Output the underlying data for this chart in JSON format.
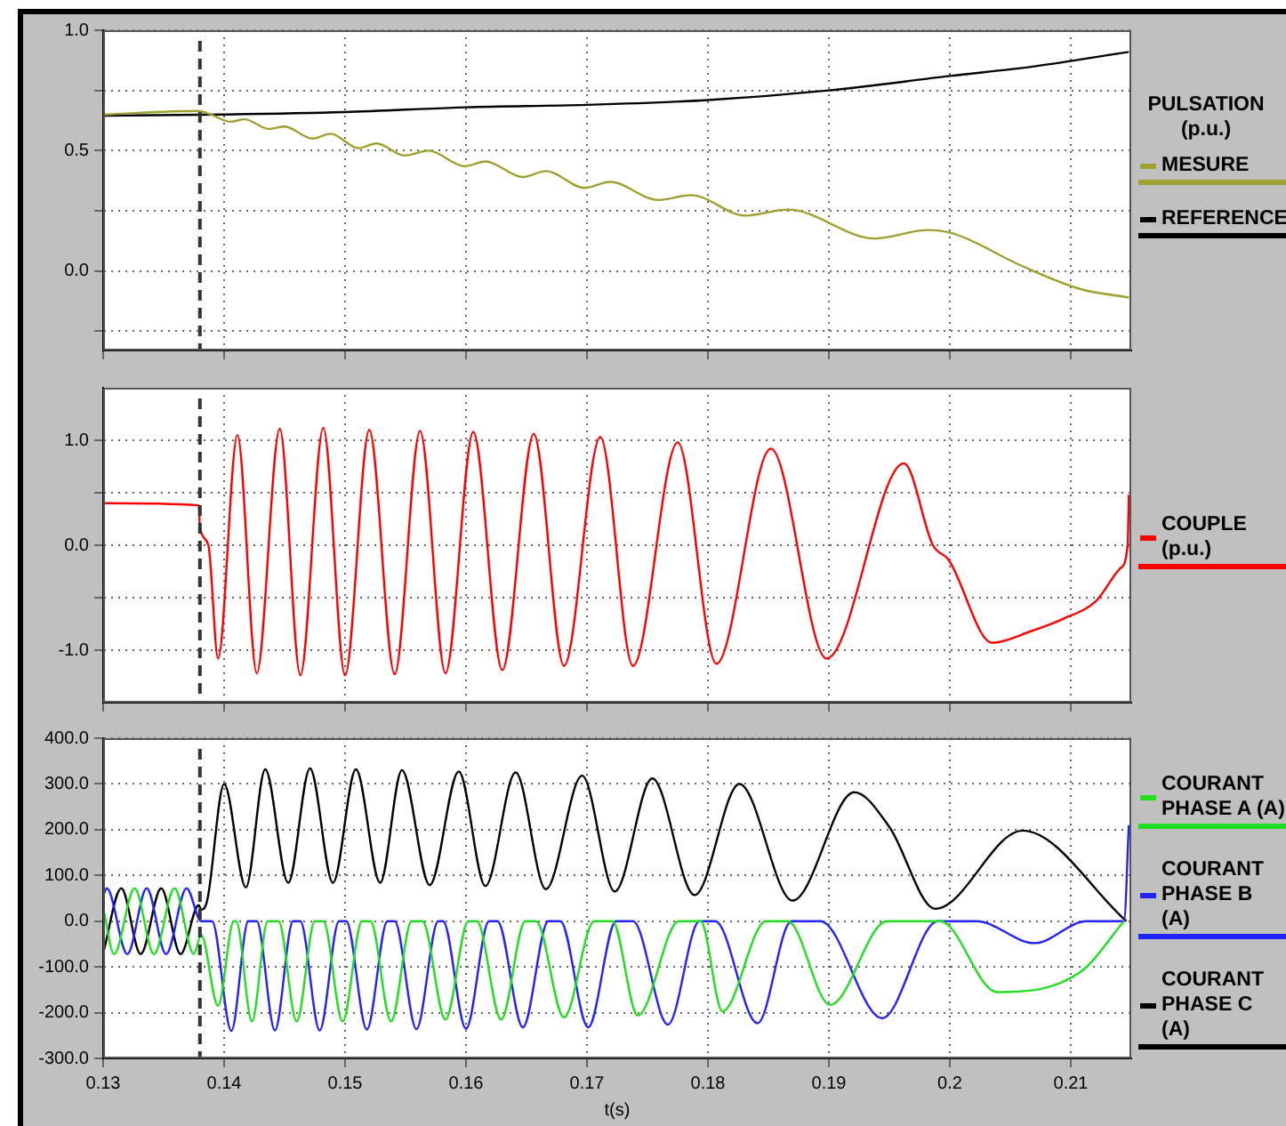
{
  "chart_data": [
    {
      "type": "line",
      "legend_title": "PULSATION (p.u.)",
      "legend": "right",
      "grid": true,
      "tick_labels": "y",
      "xlim": [
        0.13,
        0.215
      ],
      "xticks": [
        0.13,
        0.14,
        0.15,
        0.16,
        0.17,
        0.18,
        0.19,
        0.2,
        0.21
      ],
      "ylim": [
        -0.33,
        1
      ],
      "yticks": [
        {
          "value": -0.25,
          "label": null
        },
        {
          "value": 0,
          "label": "0.0"
        },
        {
          "value": 0.25,
          "label": null
        },
        {
          "value": 0.5,
          "label": "0.5"
        },
        {
          "value": 0.75,
          "label": null
        },
        {
          "value": 1,
          "label": "1.0"
        }
      ],
      "ref_lines": [
        {
          "axis": "x",
          "value": 0.138,
          "color": "#333333",
          "line_style": "dashed"
        }
      ],
      "series": [
        {
          "name": "MESURE",
          "color": "#a0a030",
          "x": [
            0.13,
            0.1379,
            0.1389,
            0.1405,
            0.1417,
            0.1437,
            0.145,
            0.1473,
            0.1488,
            0.1511,
            0.1526,
            0.1549,
            0.1569,
            0.1599,
            0.1616,
            0.1647,
            0.1666,
            0.1698,
            0.1719,
            0.1759,
            0.1786,
            0.1831,
            0.1866,
            0.1938,
            0.1982,
            0.2003,
            0.206,
            0.2108,
            0.2148
          ],
          "values": [
            0.65,
            0.665,
            0.65,
            0.62,
            0.63,
            0.59,
            0.6,
            0.55,
            0.57,
            0.51,
            0.53,
            0.48,
            0.5,
            0.435,
            0.455,
            0.39,
            0.415,
            0.345,
            0.37,
            0.295,
            0.315,
            0.23,
            0.255,
            0.135,
            0.17,
            0.155,
            0.02,
            -0.075,
            -0.11
          ]
        },
        {
          "name": "REFERENCE",
          "color": "#000000",
          "x": [
            0.13,
            0.14,
            0.15,
            0.16,
            0.17,
            0.18,
            0.19,
            0.2,
            0.207,
            0.2148
          ],
          "values": [
            0.645,
            0.65,
            0.66,
            0.68,
            0.69,
            0.71,
            0.75,
            0.81,
            0.85,
            0.91
          ]
        }
      ]
    },
    {
      "type": "line",
      "legend": "right",
      "grid": true,
      "tick_labels": "y",
      "xlim": [
        0.13,
        0.215
      ],
      "xticks": [
        0.13,
        0.14,
        0.15,
        0.16,
        0.17,
        0.18,
        0.19,
        0.2,
        0.21
      ],
      "ylim": [
        -1.5,
        1.5
      ],
      "yticks": [
        {
          "value": -1,
          "label": "-1.0"
        },
        {
          "value": -0.5,
          "label": null
        },
        {
          "value": 0,
          "label": "0.0"
        },
        {
          "value": 0.5,
          "label": null
        },
        {
          "value": 1,
          "label": "1.0"
        }
      ],
      "ref_lines": [
        {
          "axis": "x",
          "value": 0.138,
          "color": "#333333",
          "line_style": "dashed"
        }
      ],
      "series": [
        {
          "name": "COUPLE (p.u.)",
          "color": "#ff0000",
          "x": [
            0.13,
            0.1379,
            0.138,
            0.1387,
            0.1395,
            0.1411,
            0.1427,
            0.1446,
            0.1463,
            0.1482,
            0.15,
            0.152,
            0.1541,
            0.1562,
            0.1583,
            0.1606,
            0.163,
            0.1656,
            0.1681,
            0.1711,
            0.1738,
            0.1775,
            0.1807,
            0.1852,
            0.1898,
            0.1962,
            0.1986,
            0.1999,
            0.2035,
            0.2067,
            0.2094,
            0.2121,
            0.2141,
            0.2147,
            0.2148
          ],
          "values": [
            0.4,
            0.38,
            0.17,
            0,
            -1.08,
            1.05,
            -1.22,
            1.11,
            -1.24,
            1.12,
            -1.24,
            1.1,
            -1.23,
            1.09,
            -1.22,
            1.08,
            -1.19,
            1.06,
            -1.15,
            1.03,
            -1.15,
            0.98,
            -1.13,
            0.92,
            -1.08,
            0.78,
            0,
            -0.14,
            -0.93,
            -0.82,
            -0.7,
            -0.53,
            -0.22,
            0,
            0.48
          ]
        }
      ]
    },
    {
      "type": "line",
      "legend": "right",
      "grid": true,
      "xlabel": "t(s)",
      "xlim": [
        0.13,
        0.215
      ],
      "xticks": [
        0.13,
        0.14,
        0.15,
        0.16,
        0.17,
        0.18,
        0.19,
        0.2,
        0.21
      ],
      "ylim": [
        -300,
        400
      ],
      "yticks": [
        {
          "value": -300,
          "label": "-300.0"
        },
        {
          "value": -200,
          "label": "-200.0"
        },
        {
          "value": -100,
          "label": "-100.0"
        },
        {
          "value": 0,
          "label": "0.0"
        },
        {
          "value": 100,
          "label": "100.0"
        },
        {
          "value": 200,
          "label": "200.0"
        },
        {
          "value": 300,
          "label": "300.0"
        },
        {
          "value": 400,
          "label": "400.0"
        }
      ],
      "ref_lines": [
        {
          "axis": "x",
          "value": 0.138,
          "color": "#333333",
          "line_style": "dashed"
        }
      ],
      "series": [
        {
          "name": "COURANT PHASE A (A)",
          "color": "#22dd22",
          "x": [
            0.13,
            0.1309,
            0.1326,
            0.1342,
            0.1359,
            0.1375,
            0.1381,
            0.1395,
            0.1408,
            0.141,
            0.1423,
            0.1436,
            0.1445,
            0.146,
            0.1475,
            0.1482,
            0.1498,
            0.1514,
            0.1521,
            0.1538,
            0.1555,
            0.1564,
            0.1583,
            0.1602,
            0.1609,
            0.1629,
            0.1649,
            0.1658,
            0.1681,
            0.1706,
            0.1721,
            0.1742,
            0.1776,
            0.1794,
            0.1812,
            0.1848,
            0.1866,
            0.1901,
            0.1948,
            0.1992,
            0.2039,
            0.2108,
            0.2144
          ],
          "values": [
            30,
            -72,
            72,
            -72,
            72,
            -72,
            -30,
            -185,
            0,
            0,
            -219,
            0,
            0,
            -219,
            0,
            0,
            -219,
            0,
            0,
            -219,
            0,
            0,
            -215,
            0,
            0,
            -215,
            0,
            0,
            -210,
            0,
            0,
            -206,
            0,
            0,
            -197,
            0,
            0,
            -183,
            0,
            0,
            -155,
            -111,
            0
          ]
        },
        {
          "name": "COURANT PHASE B (A)",
          "color": "#2222ff",
          "x": [
            0.13,
            0.1303,
            0.132,
            0.1336,
            0.1352,
            0.1369,
            0.1381,
            0.139,
            0.1406,
            0.142,
            0.1427,
            0.1442,
            0.1457,
            0.1463,
            0.1479,
            0.1495,
            0.1501,
            0.1518,
            0.1535,
            0.1541,
            0.1559,
            0.1577,
            0.1581,
            0.16,
            0.1619,
            0.1626,
            0.1647,
            0.1668,
            0.1678,
            0.1701,
            0.1724,
            0.1738,
            0.1767,
            0.1793,
            0.1806,
            0.1841,
            0.1869,
            0.1893,
            0.1944,
            0.199,
            0.2022,
            0.207,
            0.2113,
            0.2144,
            0.2148
          ],
          "values": [
            55,
            72,
            -72,
            72,
            -72,
            72,
            0,
            0,
            -240,
            0,
            0,
            -239,
            0,
            0,
            -239,
            0,
            0,
            -237,
            0,
            0,
            -236,
            0,
            0,
            -235,
            0,
            0,
            -232,
            0,
            0,
            -232,
            0,
            0,
            -226,
            0,
            0,
            -223,
            0,
            0,
            -212,
            0,
            0,
            -48,
            0,
            0,
            210
          ]
        },
        {
          "name": "COURANT PHASE C (A)",
          "color": "#000000",
          "x": [
            0.13,
            0.1315,
            0.1331,
            0.1348,
            0.1364,
            0.1379,
            0.1381,
            0.1386,
            0.14,
            0.1418,
            0.1434,
            0.1453,
            0.1471,
            0.149,
            0.1509,
            0.1529,
            0.1547,
            0.157,
            0.1594,
            0.1616,
            0.1641,
            0.1666,
            0.1696,
            0.1723,
            0.1754,
            0.1789,
            0.1826,
            0.187,
            0.1921,
            0.195,
            0.1988,
            0.206,
            0.2146
          ],
          "values": [
            -70,
            72,
            -72,
            72,
            -72,
            35,
            25,
            45,
            300,
            74,
            332,
            84,
            334,
            84,
            332,
            84,
            330,
            79,
            327,
            77,
            325,
            70,
            318,
            65,
            312,
            57,
            300,
            45,
            282,
            206,
            27,
            198,
            0
          ]
        }
      ]
    }
  ]
}
